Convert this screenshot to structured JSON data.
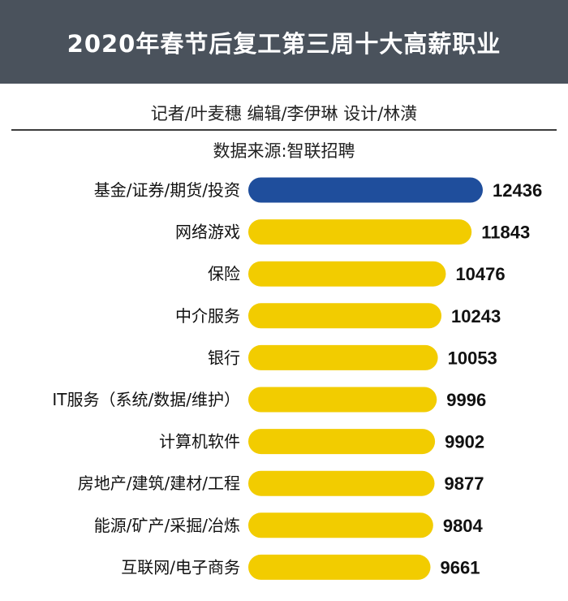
{
  "header": {
    "title": "2020年春节后复工第三周十大高薪职业"
  },
  "credits": "记者/叶麦穗  编辑/李伊琳  设计/林潢",
  "source": "数据来源:智联招聘",
  "colors": {
    "header_bg": "#4a525c",
    "highlight_bar": "#1f4e9c",
    "bar": "#f2cc00"
  },
  "chart_data": {
    "type": "bar",
    "orientation": "horizontal",
    "categories": [
      "基金/证券/期货/投资",
      "网络游戏",
      "保险",
      "中介服务",
      "银行",
      "IT服务（系统/数据/维护）",
      "计算机软件",
      "房地产/建筑/建材/工程",
      "能源/矿产/采掘/冶炼",
      "互联网/电子商务"
    ],
    "values": [
      12436,
      11843,
      10476,
      10243,
      10053,
      9996,
      9902,
      9877,
      9804,
      9661
    ],
    "value_labels": [
      "12436",
      "11843",
      "10476",
      "10243",
      "10053",
      "9996",
      "9902",
      "9877",
      "9804",
      "9661"
    ],
    "highlight_index": 0,
    "xlim": [
      0,
      12436
    ],
    "grid": false
  }
}
